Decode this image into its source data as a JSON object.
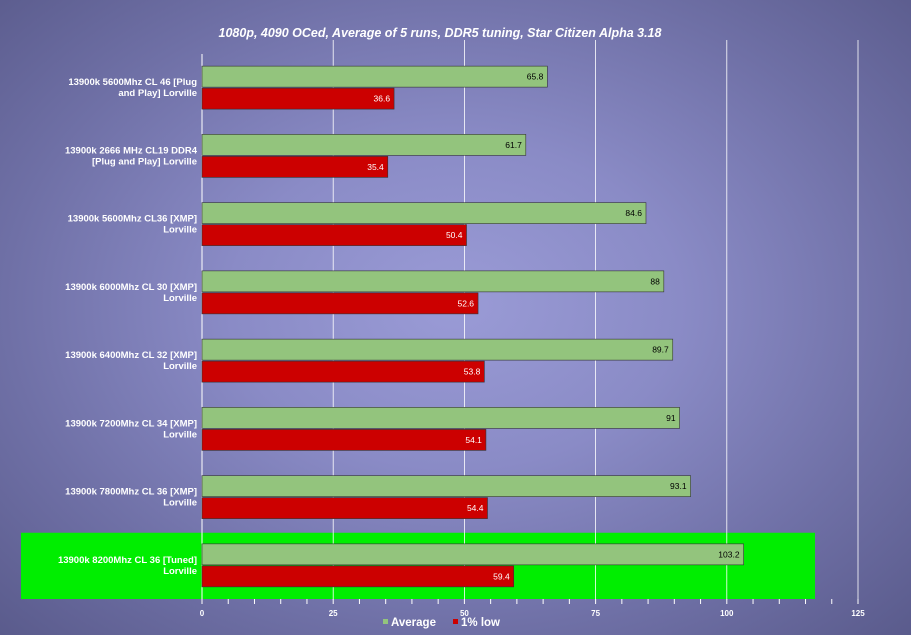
{
  "chart_data": {
    "type": "bar",
    "orientation": "horizontal",
    "title": "1080p, 4090 OCed, Average of 5 runs, DDR5 tuning, Star Citizen Alpha 3.18",
    "categories": [
      [
        "13900k 5600Mhz CL 46 [Plug",
        "and Play] Lorville"
      ],
      [
        "13900k 2666 MHz CL19 DDR4",
        "[Plug and Play] Lorville"
      ],
      [
        "13900k 5600Mhz CL36 [XMP]",
        "Lorville"
      ],
      [
        "13900k 6000Mhz CL 30 [XMP]",
        "Lorville"
      ],
      [
        "13900k 6400Mhz CL 32  [XMP]",
        "Lorville"
      ],
      [
        "13900k 7200Mhz CL 34 [XMP]",
        "Lorville"
      ],
      [
        "13900k 7800Mhz CL 36 [XMP]",
        "Lorville"
      ],
      [
        "13900k 8200Mhz CL 36 [Tuned]",
        "Lorville"
      ]
    ],
    "series": [
      {
        "name": "Average",
        "color": "#93c47d",
        "values": [
          65.8,
          61.7,
          84.6,
          88,
          89.7,
          91,
          93.1,
          103.2
        ],
        "labels": [
          "65.8",
          "61.7",
          "84.6",
          "88",
          "89.7",
          "91",
          "93.1",
          "103.2"
        ]
      },
      {
        "name": "1% low",
        "color": "#cc0000",
        "values": [
          36.6,
          35.4,
          50.4,
          52.6,
          53.8,
          54.1,
          54.4,
          59.4
        ],
        "labels": [
          "36.6",
          "35.4",
          "50.4",
          "52.6",
          "53.8",
          "54.1",
          "54.4",
          "59.4"
        ]
      }
    ],
    "xlim": [
      0,
      125
    ],
    "xticks": [
      "0",
      "25",
      "50",
      "75",
      "100",
      "125"
    ],
    "grid": true,
    "legend": "bottom",
    "highlight_category_index": 7,
    "highlight_color": "#00ee00"
  }
}
